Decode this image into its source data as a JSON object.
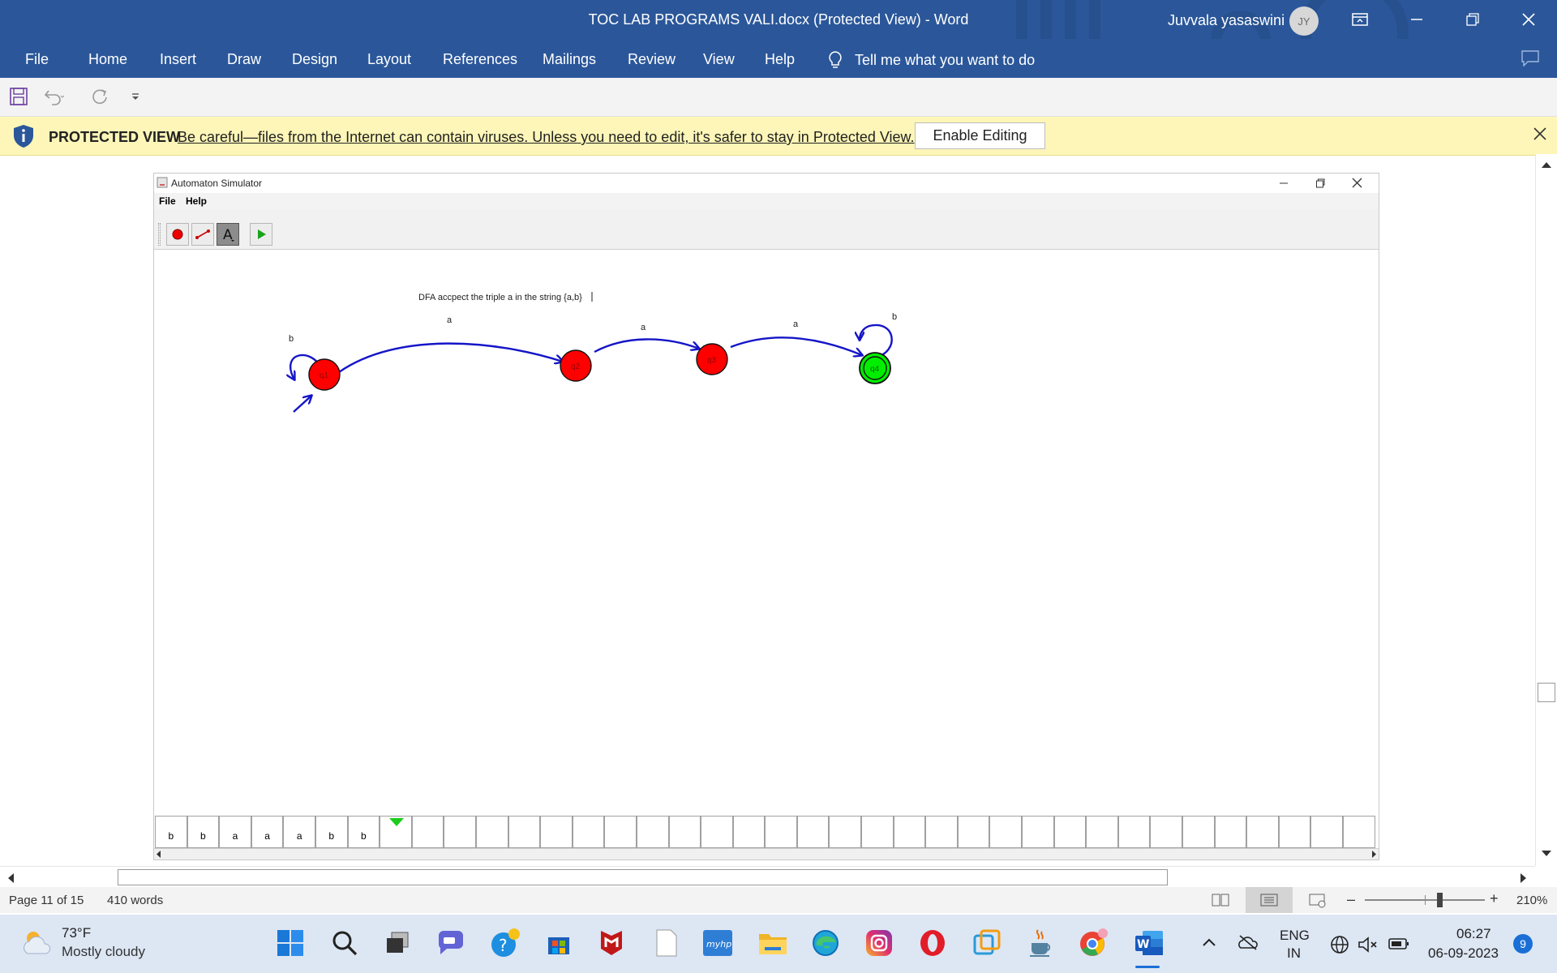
{
  "word": {
    "doc_title": "TOC LAB PROGRAMS VALI.docx (Protected View)  -  Word",
    "user_name": "Juvvala yasaswini",
    "user_initials": "JY",
    "tabs": [
      "File",
      "Home",
      "Insert",
      "Draw",
      "Design",
      "Layout",
      "References",
      "Mailings",
      "Review",
      "View",
      "Help"
    ],
    "tell_me": "Tell me what you want to do"
  },
  "protected_view": {
    "title": "PROTECTED VIEW",
    "message": "Be careful—files from the Internet can contain viruses. Unless you need to edit, it's safer to stay in Protected View.",
    "enable_button": "Enable Editing"
  },
  "simulator": {
    "window_title": "Automaton Simulator",
    "menu": [
      "File",
      "Help"
    ],
    "note": "DFA accpect the triple a in the string {a,b}",
    "states": [
      {
        "label": "q1",
        "type": "start",
        "color": "#ff0000"
      },
      {
        "label": "q2",
        "type": "normal",
        "color": "#ff0000"
      },
      {
        "label": "q3",
        "type": "normal",
        "color": "#ff0000"
      },
      {
        "label": "q4",
        "type": "accept",
        "color": "#00ff00"
      }
    ],
    "transitions": [
      {
        "from": "q1",
        "to": "q1",
        "symbol": "b"
      },
      {
        "from": "q1",
        "to": "q2",
        "symbol": "a"
      },
      {
        "from": "q2",
        "to": "q3",
        "symbol": "a"
      },
      {
        "from": "q3",
        "to": "q4",
        "symbol": "a"
      },
      {
        "from": "q4",
        "to": "q4",
        "symbol": "b"
      }
    ],
    "tape": [
      "b",
      "b",
      "a",
      "a",
      "a",
      "b",
      "b"
    ],
    "head_position": 7
  },
  "status": {
    "page": "Page 11 of 15",
    "words": "410 words",
    "zoom": "210%"
  },
  "taskbar": {
    "temperature": "73°F",
    "weather": "Mostly cloudy",
    "lang_1": "ENG",
    "lang_2": "IN",
    "time": "06:27",
    "date": "06-09-2023",
    "notifications": "9"
  }
}
